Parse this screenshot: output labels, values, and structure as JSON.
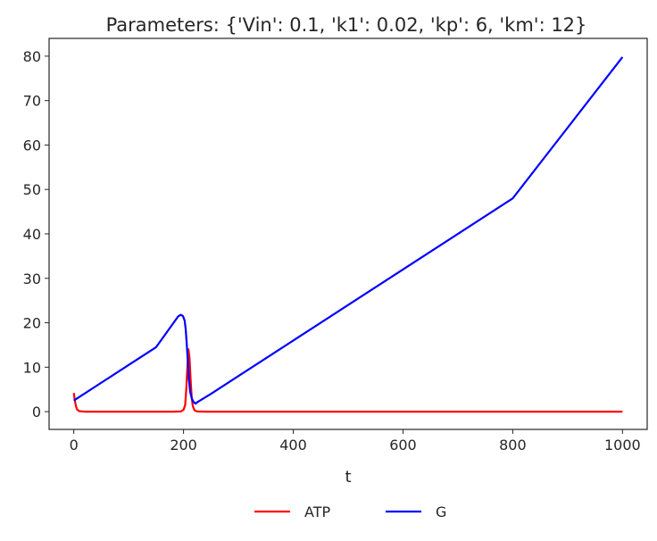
{
  "chart_data": {
    "type": "line",
    "title": "Parameters: {'Vin': 0.1, 'k1': 0.02, 'kp': 6, 'km': 12}",
    "xlabel": "t",
    "ylabel": "",
    "xlim": [
      -45,
      1045
    ],
    "ylim": [
      -4,
      84
    ],
    "xticks": [
      0,
      200,
      400,
      600,
      800,
      1000
    ],
    "yticks": [
      0,
      10,
      20,
      30,
      40,
      50,
      60,
      70,
      80
    ],
    "grid": false,
    "legend": "bottom-center",
    "series": [
      {
        "name": "ATP",
        "color": "#ff0000",
        "points": [
          [
            0,
            4.2
          ],
          [
            2,
            2.5
          ],
          [
            4,
            1.2
          ],
          [
            6,
            0.5
          ],
          [
            10,
            0.1
          ],
          [
            20,
            0
          ],
          [
            100,
            0
          ],
          [
            180,
            0
          ],
          [
            195,
            0.05
          ],
          [
            200,
            0.4
          ],
          [
            203,
            1.5
          ],
          [
            205,
            5
          ],
          [
            207,
            10
          ],
          [
            209,
            14
          ],
          [
            211,
            12
          ],
          [
            213,
            7
          ],
          [
            215,
            3
          ],
          [
            217,
            1.2
          ],
          [
            220,
            0.3
          ],
          [
            225,
            0.05
          ],
          [
            240,
            0
          ],
          [
            400,
            0
          ],
          [
            600,
            0
          ],
          [
            800,
            0
          ],
          [
            1000,
            0
          ]
        ]
      },
      {
        "name": "G",
        "color": "#0000ff",
        "points": [
          [
            0,
            2.5
          ],
          [
            5,
            2.9
          ],
          [
            50,
            6.5
          ],
          [
            100,
            10.5
          ],
          [
            150,
            14.5
          ],
          [
            190,
            21.4
          ],
          [
            195,
            21.8
          ],
          [
            199,
            21.5
          ],
          [
            202,
            20.5
          ],
          [
            204,
            18.5
          ],
          [
            206,
            15
          ],
          [
            208,
            11
          ],
          [
            210,
            7
          ],
          [
            212,
            4.5
          ],
          [
            215,
            3
          ],
          [
            218,
            2.2
          ],
          [
            222,
            1.8
          ],
          [
            226,
            2.2
          ],
          [
            250,
            4.0
          ],
          [
            400,
            16.0
          ],
          [
            600,
            32.0
          ],
          [
            800,
            48.0
          ],
          [
            1000,
            79.8
          ]
        ]
      }
    ]
  },
  "colors": {
    "axis": "#262626",
    "background": "#ffffff"
  }
}
